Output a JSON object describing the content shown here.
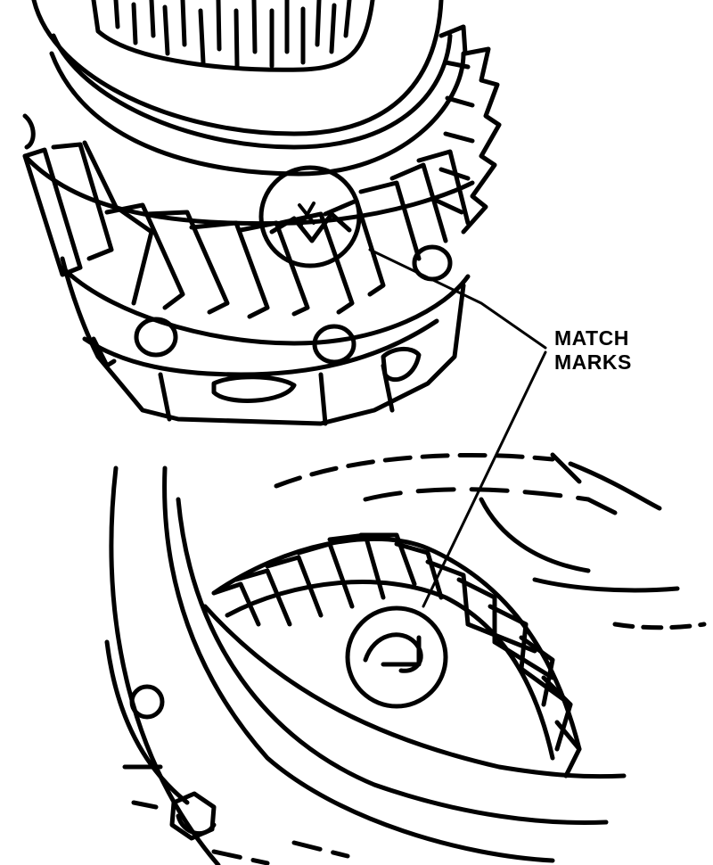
{
  "callout": {
    "line1": "MATCH",
    "line2": "MARKS"
  },
  "colors": {
    "ink": "#000000",
    "paper": "#ffffff"
  }
}
